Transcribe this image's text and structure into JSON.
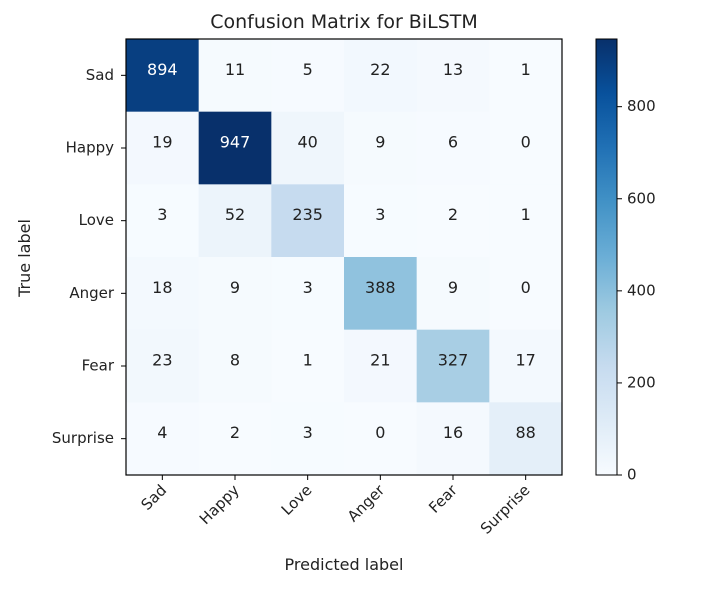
{
  "chart_data": {
    "type": "heatmap",
    "title": "Confusion Matrix for BiLSTM",
    "xlabel": "Predicted label",
    "ylabel": "True label",
    "x_categories": [
      "Sad",
      "Happy",
      "Love",
      "Anger",
      "Fear",
      "Surprise"
    ],
    "y_categories": [
      "Sad",
      "Happy",
      "Love",
      "Anger",
      "Fear",
      "Surprise"
    ],
    "values": [
      [
        894,
        11,
        5,
        22,
        13,
        1
      ],
      [
        19,
        947,
        40,
        9,
        6,
        0
      ],
      [
        3,
        52,
        235,
        3,
        2,
        1
      ],
      [
        18,
        9,
        3,
        388,
        9,
        0
      ],
      [
        23,
        8,
        1,
        21,
        327,
        17
      ],
      [
        4,
        2,
        3,
        0,
        16,
        88
      ]
    ],
    "colormap": "Blues",
    "colorbar": {
      "range": [
        0,
        947
      ],
      "ticks": [
        "0",
        "200",
        "400",
        "600",
        "800"
      ],
      "tick_values": [
        0,
        200,
        400,
        600,
        800
      ]
    },
    "grid": false
  }
}
